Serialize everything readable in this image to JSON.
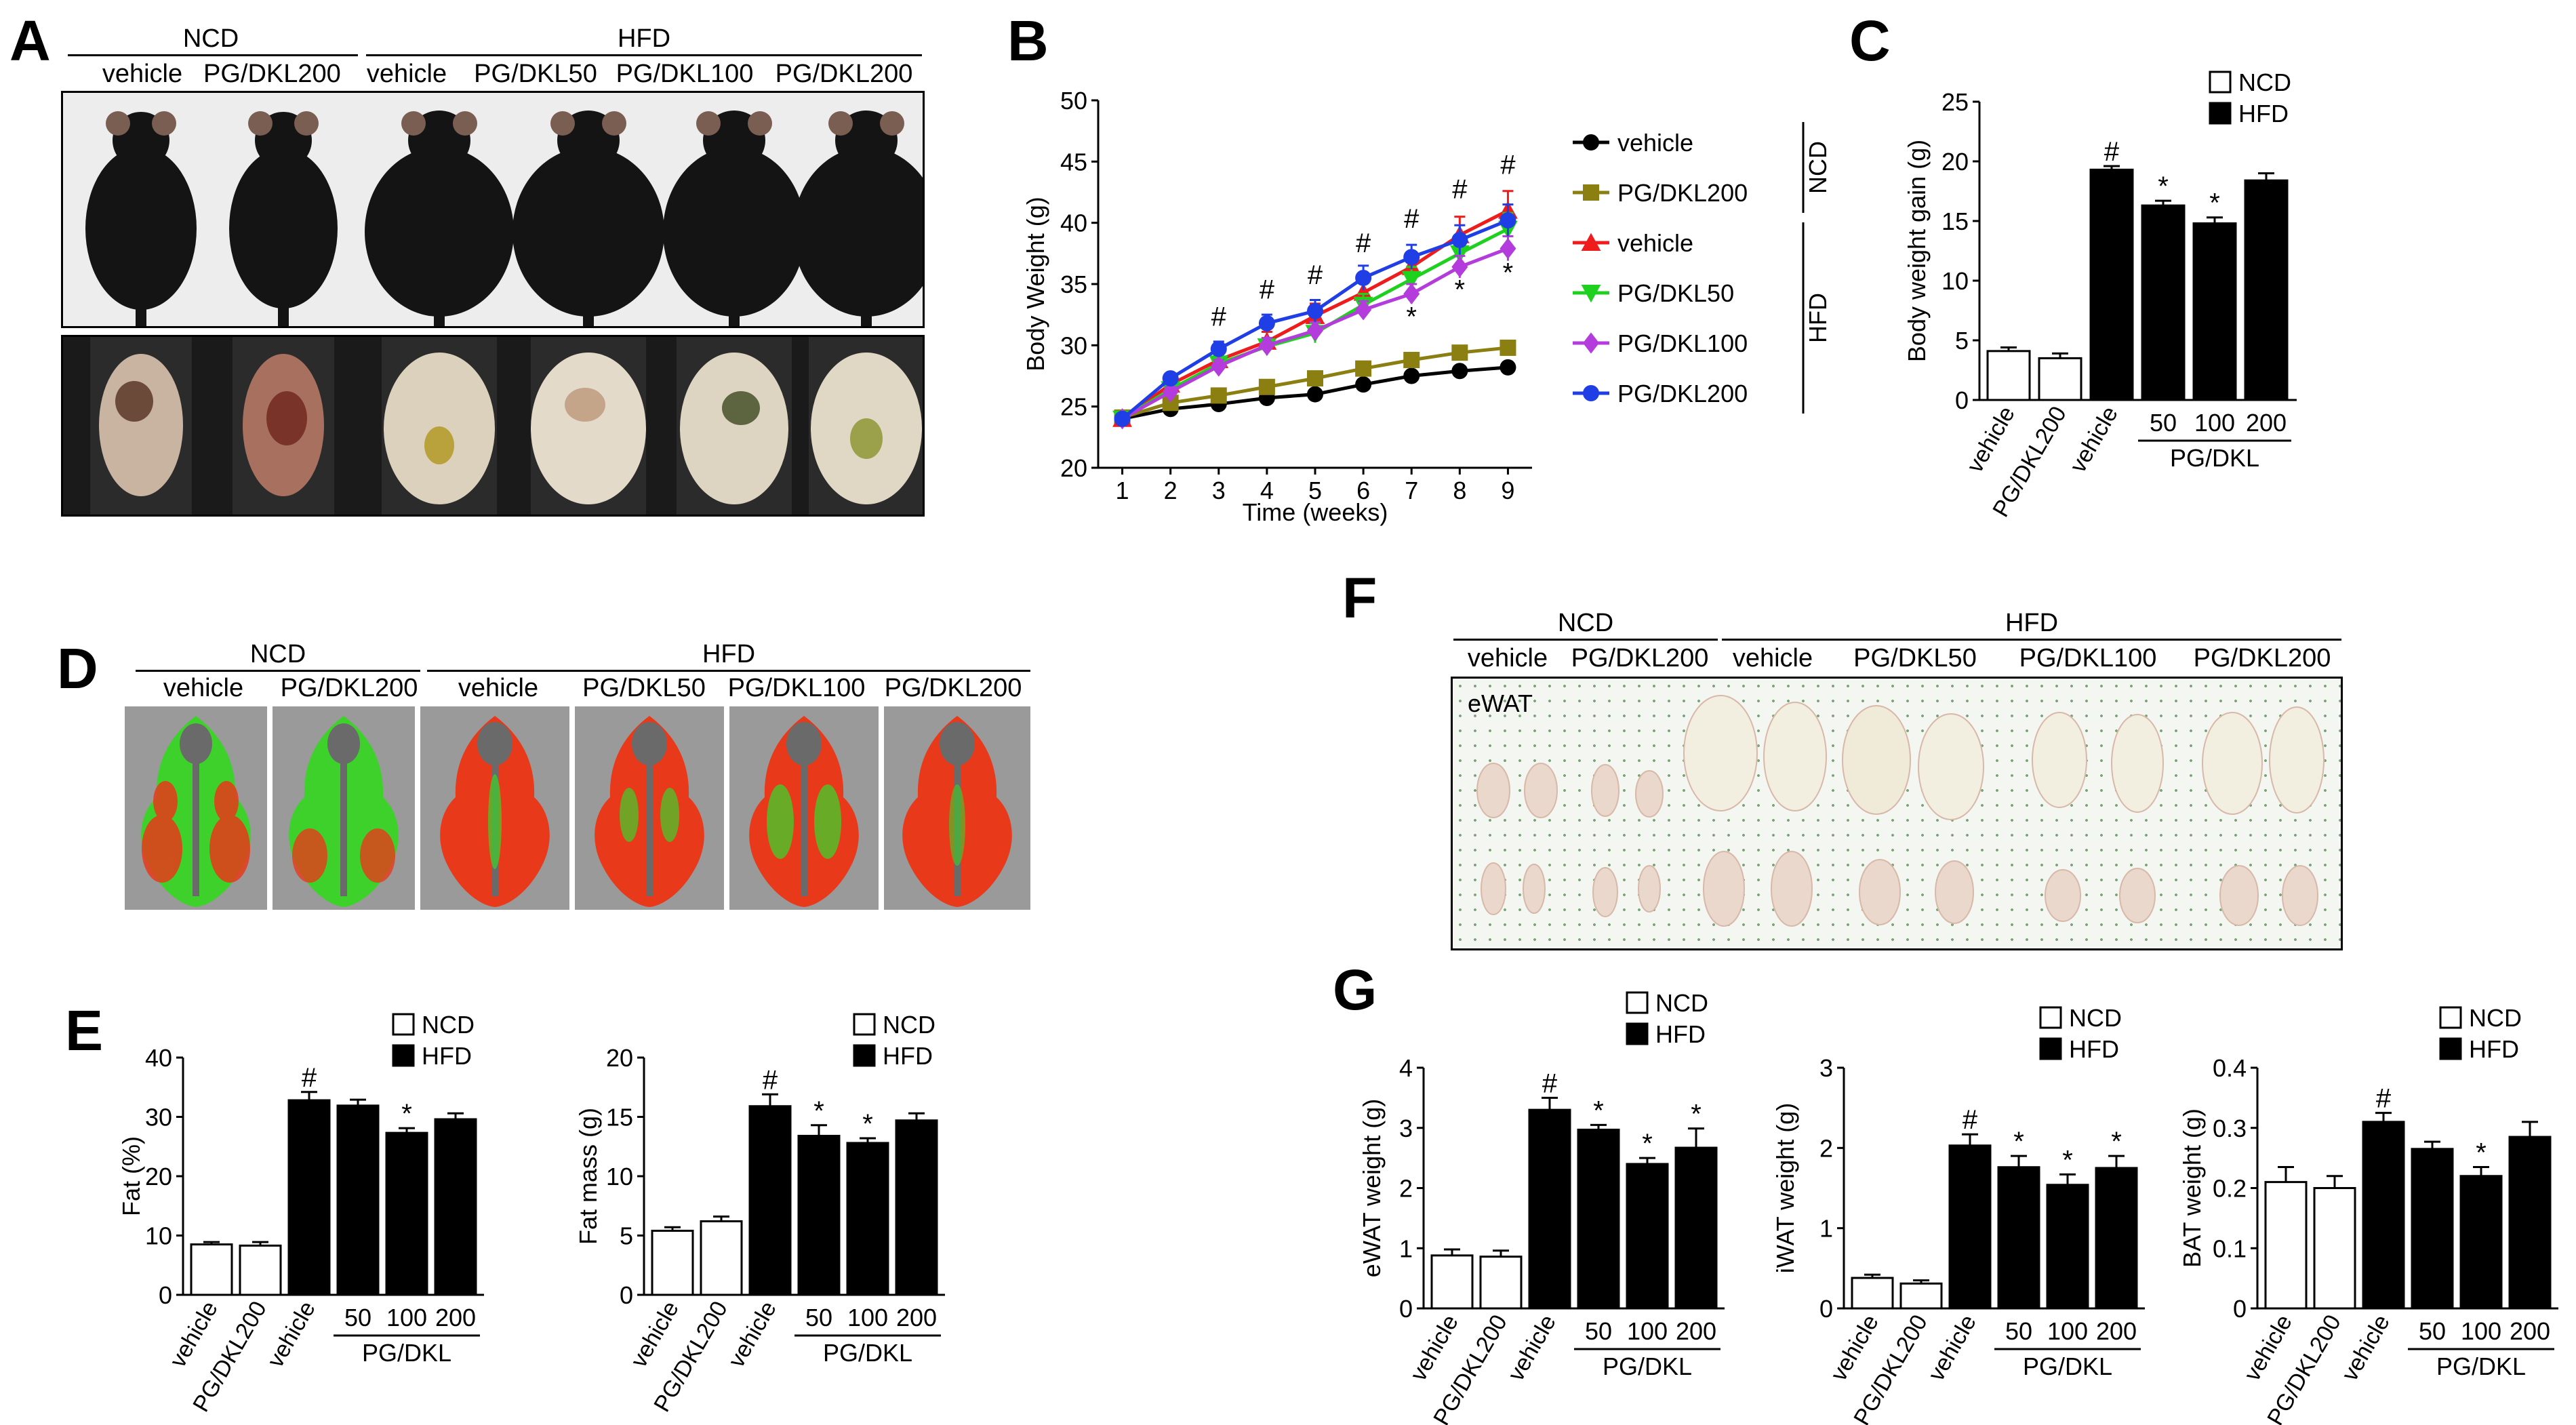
{
  "panels": {
    "A": {
      "label": "A",
      "ncd": "NCD",
      "hfd": "HFD",
      "cols": [
        "vehicle",
        "PG/DKL200",
        "vehicle",
        "PG/DKL50",
        "PG/DKL100",
        "PG/DKL200"
      ]
    },
    "B": {
      "label": "B"
    },
    "C": {
      "label": "C"
    },
    "D": {
      "label": "D",
      "ncd": "NCD",
      "hfd": "HFD",
      "cols": [
        "vehicle",
        "PG/DKL200",
        "vehicle",
        "PG/DKL50",
        "PG/DKL100",
        "PG/DKL200"
      ]
    },
    "E": {
      "label": "E"
    },
    "F": {
      "label": "F",
      "ncd": "NCD",
      "hfd": "HFD",
      "cols": [
        "vehicle",
        "PG/DKL200",
        "vehicle",
        "PG/DKL50",
        "PG/DKL100",
        "PG/DKL200"
      ],
      "tissue": "eWAT"
    },
    "G": {
      "label": "G"
    }
  },
  "colors": {
    "ncd_bar": "#ffffff",
    "hfd_bar": "#000000",
    "fat_red": "#e8391a",
    "lean_green": "#3ed12c",
    "bone_gray": "#6a6a6a",
    "mouse_black": "#141414"
  },
  "chart_data": [
    {
      "id": "B",
      "type": "line",
      "title": "",
      "xlabel": "Time (weeks)",
      "ylabel": "Body Weight (g)",
      "x": [
        1,
        2,
        3,
        4,
        5,
        6,
        7,
        8,
        9
      ],
      "xlim": [
        0.5,
        9.5
      ],
      "ylim": [
        20,
        50
      ],
      "yticks": [
        20,
        25,
        30,
        35,
        40,
        45,
        50
      ],
      "legend_groups": [
        {
          "name": "NCD",
          "series": [
            0,
            1
          ]
        },
        {
          "name": "HFD",
          "series": [
            2,
            3,
            4,
            5
          ]
        }
      ],
      "series": [
        {
          "name": "vehicle",
          "color": "#000000",
          "marker": "circle",
          "values": [
            24.0,
            24.8,
            25.2,
            25.7,
            26.0,
            26.8,
            27.5,
            27.9,
            28.2
          ],
          "err": [
            0.3,
            0.3,
            0.3,
            0.3,
            0.3,
            0.4,
            0.4,
            0.4,
            0.4
          ]
        },
        {
          "name": "PG/DKL200",
          "color": "#8a7f10",
          "marker": "square",
          "values": [
            24.1,
            25.3,
            25.9,
            26.6,
            27.3,
            28.1,
            28.8,
            29.4,
            29.8
          ],
          "err": [
            0.3,
            0.3,
            0.3,
            0.4,
            0.4,
            0.4,
            0.4,
            0.4,
            0.5
          ]
        },
        {
          "name": "vehicle",
          "color": "#ee1c1c",
          "marker": "triangle-up",
          "values": [
            24.0,
            26.8,
            28.8,
            30.3,
            32.4,
            34.3,
            36.4,
            39.0,
            41.0
          ],
          "err": [
            0.3,
            0.5,
            0.6,
            0.8,
            1.0,
            1.1,
            1.2,
            1.5,
            1.6
          ]
        },
        {
          "name": "PG/DKL50",
          "color": "#1ed11e",
          "marker": "triangle-down",
          "values": [
            24.0,
            26.4,
            28.5,
            29.9,
            31.0,
            33.3,
            35.4,
            37.5,
            39.5
          ],
          "err": [
            0.3,
            0.5,
            0.6,
            0.7,
            0.8,
            0.9,
            1.0,
            1.2,
            1.3
          ]
        },
        {
          "name": "PG/DKL100",
          "color": "#b43cdc",
          "marker": "diamond",
          "values": [
            24.0,
            26.2,
            28.3,
            30.0,
            31.2,
            32.9,
            34.2,
            36.4,
            37.9
          ],
          "err": [
            0.3,
            0.4,
            0.5,
            0.6,
            0.7,
            0.7,
            0.8,
            0.9,
            1.0
          ]
        },
        {
          "name": "PG/DKL200",
          "color": "#1f3ee6",
          "marker": "circle",
          "values": [
            24.0,
            27.3,
            29.7,
            31.8,
            32.8,
            35.5,
            37.2,
            38.6,
            40.2
          ],
          "err": [
            0.3,
            0.4,
            0.6,
            0.7,
            0.9,
            1.0,
            1.0,
            1.2,
            1.3
          ]
        }
      ],
      "annotations": [
        {
          "text": "#",
          "x": 3,
          "y": 31.6
        },
        {
          "text": "#",
          "x": 4,
          "y": 33.8
        },
        {
          "text": "#",
          "x": 5,
          "y": 35.0
        },
        {
          "text": "#",
          "x": 6,
          "y": 37.6
        },
        {
          "text": "#",
          "x": 7,
          "y": 39.6
        },
        {
          "text": "#",
          "x": 8,
          "y": 42.0
        },
        {
          "text": "#",
          "x": 9,
          "y": 44.0
        },
        {
          "text": "*",
          "x": 7,
          "y": 31.6
        },
        {
          "text": "*",
          "x": 8,
          "y": 33.8
        },
        {
          "text": "*",
          "x": 9,
          "y": 35.2
        }
      ]
    },
    {
      "id": "C",
      "type": "bar",
      "xlabel": "",
      "ylabel": "Body weight gain (g)",
      "ylim": [
        0,
        25
      ],
      "yticks": [
        0,
        5,
        10,
        15,
        20,
        25
      ],
      "categories": [
        "vehicle",
        "PG/DKL200",
        "vehicle",
        "50",
        "100",
        "200"
      ],
      "group_label": "PG/DKL",
      "values": [
        4.1,
        3.5,
        19.3,
        16.3,
        14.8,
        18.4
      ],
      "err": [
        0.3,
        0.4,
        0.3,
        0.4,
        0.5,
        0.6
      ],
      "marks": [
        "",
        "",
        "#",
        "*",
        "*",
        ""
      ],
      "legend": [
        "NCD",
        "HFD"
      ]
    },
    {
      "id": "E-fat",
      "type": "bar",
      "xlabel": "",
      "ylabel": "Fat (%)",
      "ylim": [
        0,
        40
      ],
      "yticks": [
        0,
        10,
        20,
        30,
        40
      ],
      "categories": [
        "vehicle",
        "PG/DKL200",
        "vehicle",
        "50",
        "100",
        "200"
      ],
      "group_label": "PG/DKL",
      "values": [
        8.5,
        8.3,
        32.8,
        31.9,
        27.3,
        29.6
      ],
      "err": [
        0.4,
        0.6,
        1.4,
        1.0,
        0.8,
        1.0
      ],
      "marks": [
        "",
        "",
        "#",
        "",
        "*",
        ""
      ],
      "legend": [
        "NCD",
        "HFD"
      ]
    },
    {
      "id": "E-mass",
      "type": "bar",
      "xlabel": "",
      "ylabel": "Fat mass (g)",
      "ylim": [
        0,
        20
      ],
      "yticks": [
        0,
        5,
        10,
        15,
        20
      ],
      "categories": [
        "vehicle",
        "PG/DKL200",
        "vehicle",
        "50",
        "100",
        "200"
      ],
      "group_label": "PG/DKL",
      "values": [
        5.4,
        6.2,
        15.9,
        13.4,
        12.8,
        14.7
      ],
      "err": [
        0.3,
        0.4,
        1.0,
        0.9,
        0.4,
        0.6
      ],
      "marks": [
        "",
        "",
        "#",
        "*",
        "*",
        ""
      ],
      "legend": [
        "NCD",
        "HFD"
      ]
    },
    {
      "id": "G-eWAT",
      "type": "bar",
      "xlabel": "",
      "ylabel": "eWAT weight (g)",
      "ylim": [
        0,
        4
      ],
      "yticks": [
        0,
        1,
        2,
        3,
        4
      ],
      "categories": [
        "vehicle",
        "PG/DKL200",
        "vehicle",
        "50",
        "100",
        "200"
      ],
      "group_label": "PG/DKL",
      "values": [
        0.88,
        0.86,
        3.3,
        2.97,
        2.4,
        2.67
      ],
      "err": [
        0.1,
        0.1,
        0.2,
        0.08,
        0.1,
        0.32
      ],
      "marks": [
        "",
        "",
        "#",
        "*",
        "*",
        "*"
      ],
      "legend": [
        "NCD",
        "HFD"
      ]
    },
    {
      "id": "G-iWAT",
      "type": "bar",
      "xlabel": "",
      "ylabel": "iWAT weight (g)",
      "ylim": [
        0,
        3
      ],
      "yticks": [
        0,
        1,
        2,
        3
      ],
      "categories": [
        "vehicle",
        "PG/DKL200",
        "vehicle",
        "50",
        "100",
        "200"
      ],
      "group_label": "PG/DKL",
      "values": [
        0.38,
        0.31,
        2.03,
        1.76,
        1.54,
        1.75
      ],
      "err": [
        0.04,
        0.04,
        0.14,
        0.14,
        0.13,
        0.15
      ],
      "marks": [
        "",
        "",
        "#",
        "*",
        "*",
        "*"
      ],
      "legend": [
        "NCD",
        "HFD"
      ]
    },
    {
      "id": "G-BAT",
      "type": "bar",
      "xlabel": "",
      "ylabel": "BAT weight (g)",
      "ylim": [
        0,
        0.4
      ],
      "yticks": [
        0,
        0.1,
        0.2,
        0.3,
        0.4
      ],
      "categories": [
        "vehicle",
        "PG/DKL200",
        "vehicle",
        "50",
        "100",
        "200"
      ],
      "group_label": "PG/DKL",
      "values": [
        0.21,
        0.2,
        0.31,
        0.265,
        0.22,
        0.285
      ],
      "err": [
        0.025,
        0.02,
        0.015,
        0.012,
        0.015,
        0.025
      ],
      "marks": [
        "",
        "",
        "#",
        "",
        "*",
        ""
      ],
      "legend": [
        "NCD",
        "HFD"
      ]
    }
  ]
}
